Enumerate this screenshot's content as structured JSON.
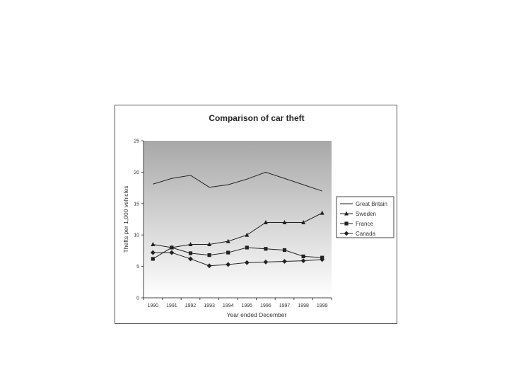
{
  "chart_data": {
    "type": "line",
    "title": "Comparison of car theft",
    "xlabel": "Year ended December",
    "ylabel": "Thefts per 1,000 vehicles",
    "x": [
      "1990",
      "1991",
      "1992",
      "1993",
      "1994",
      "1995",
      "1996",
      "1997",
      "1998",
      "1999"
    ],
    "ylim": [
      0,
      25
    ],
    "yticks": [
      "0",
      "5",
      "10",
      "15",
      "20",
      "25"
    ],
    "grid": false,
    "background": "gradient gray",
    "legend_position": "right",
    "series": [
      {
        "name": "Great Britain",
        "marker": "none",
        "color": "#222222",
        "values": [
          18.1,
          19.0,
          19.5,
          17.6,
          18.0,
          18.9,
          20.0,
          19.0,
          18.0,
          17.0
        ]
      },
      {
        "name": "Sweden",
        "marker": "triangle",
        "color": "#222222",
        "values": [
          8.5,
          8.0,
          8.5,
          8.5,
          9.0,
          10.0,
          12.0,
          12.0,
          12.0,
          13.5
        ]
      },
      {
        "name": "France",
        "marker": "square",
        "color": "#222222",
        "values": [
          6.2,
          8.0,
          7.1,
          6.8,
          7.2,
          8.0,
          7.8,
          7.6,
          6.6,
          6.4
        ]
      },
      {
        "name": "Canada",
        "marker": "diamond",
        "color": "#222222",
        "values": [
          7.2,
          7.2,
          6.2,
          5.1,
          5.3,
          5.6,
          5.7,
          5.8,
          5.9,
          6.1
        ]
      }
    ]
  }
}
